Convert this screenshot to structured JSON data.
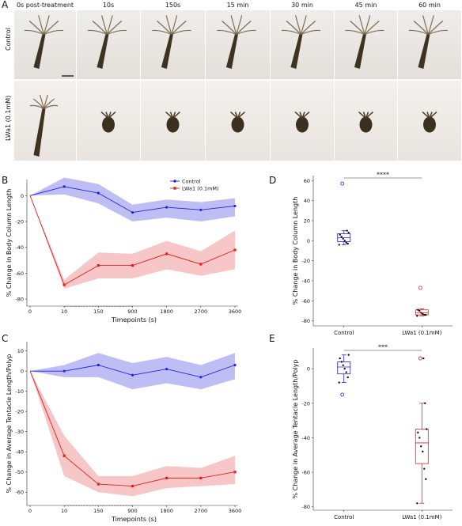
{
  "panel_a": {
    "letter": "A",
    "timepoints": [
      "0s post-treatment",
      "10s",
      "150s",
      "15 min",
      "30 min",
      "45 min",
      "60 min"
    ],
    "rows": [
      "Control",
      "LWa1 (0.1mM)"
    ]
  },
  "chart_data": [
    {
      "panel": "B",
      "type": "line",
      "title": "",
      "xlabel": "Timepoints (s)",
      "ylabel": "% Change in Body Column Length",
      "categories": [
        "0",
        "10",
        "150",
        "900",
        "1800",
        "2700",
        "3600"
      ],
      "ylim": [
        -83,
        10
      ],
      "yticks": [
        -80,
        -60,
        -40,
        -20,
        0
      ],
      "legend_position": "top-center",
      "series": [
        {
          "name": "Control",
          "color": "#2222dd",
          "band": "#b3b3f2",
          "values": [
            0,
            7,
            2,
            -13,
            -9,
            -11,
            -8
          ],
          "lower": [
            0,
            1,
            -6,
            -20,
            -17,
            -20,
            -16
          ],
          "upper": [
            0,
            14,
            9,
            -7,
            -3,
            -5,
            -2
          ]
        },
        {
          "name": "LWa1 (0.1mM)",
          "color": "#dd2222",
          "band": "#f6bcbc",
          "values": [
            0,
            -69,
            -54,
            -54,
            -45,
            -53,
            -42
          ],
          "lower": [
            0,
            -72,
            -64,
            -64,
            -57,
            -62,
            -57
          ],
          "upper": [
            0,
            -65,
            -44,
            -45,
            -35,
            -43,
            -27
          ]
        }
      ]
    },
    {
      "panel": "C",
      "type": "line",
      "title": "",
      "xlabel": "Timepoints (s)",
      "ylabel": "% Change in Average Tentacle Length/Polyp",
      "categories": [
        "0",
        "10",
        "150",
        "900",
        "1800",
        "2700",
        "3600"
      ],
      "ylim": [
        -65,
        13
      ],
      "yticks": [
        -60,
        -50,
        -40,
        -30,
        -20,
        -10,
        0,
        10
      ],
      "series": [
        {
          "name": "Control",
          "color": "#2222dd",
          "band": "#b3b3f2",
          "values": [
            0,
            0,
            3,
            -2,
            1,
            -3,
            3
          ],
          "lower": [
            0,
            -3,
            -3,
            -9,
            -6,
            -9,
            -4
          ],
          "upper": [
            0,
            3,
            9,
            4,
            7,
            3,
            9
          ]
        },
        {
          "name": "LWa1 (0.1mM)",
          "color": "#dd2222",
          "band": "#f6bcbc",
          "values": [
            0,
            -42,
            -56,
            -57,
            -53,
            -53,
            -50
          ],
          "lower": [
            0,
            -52,
            -60,
            -62,
            -58,
            -57,
            -56
          ],
          "upper": [
            0,
            -32,
            -52,
            -52,
            -47,
            -48,
            -42
          ]
        }
      ]
    },
    {
      "panel": "D",
      "type": "box",
      "title": "",
      "xlabel": "",
      "ylabel": "% Change in Body Column Length",
      "categories": [
        "Control",
        "LWa1 (0.1mM)"
      ],
      "ylim": [
        -85,
        65
      ],
      "yticks": [
        -80,
        -60,
        -40,
        -20,
        0,
        20,
        40,
        60
      ],
      "significance": "****",
      "groups": [
        {
          "name": "Control",
          "color": "#2222dd",
          "box": {
            "min": -4,
            "q1": -1,
            "median": 3,
            "q3": 7,
            "max": 10
          },
          "points": [
            -4,
            -3,
            -2,
            0,
            2,
            4,
            6,
            8,
            10
          ],
          "outliers": [
            57
          ]
        },
        {
          "name": "LWa1 (0.1mM)",
          "color": "#dd2222",
          "box": {
            "min": -75,
            "q1": -74,
            "median": -72,
            "q3": -69,
            "max": -68
          },
          "points": [
            -75,
            -74,
            -74,
            -73,
            -72,
            -70,
            -69
          ],
          "outliers": [
            -47
          ]
        }
      ]
    },
    {
      "panel": "E",
      "type": "box",
      "title": "",
      "xlabel": "",
      "ylabel": "% Change in Average Tentacle Length/Polyp",
      "categories": [
        "Control",
        "LWa1 (0.1mM)"
      ],
      "ylim": [
        -82,
        12
      ],
      "yticks": [
        -80,
        -60,
        -40,
        -20,
        0
      ],
      "significance": "***",
      "groups": [
        {
          "name": "Control",
          "color": "#2222dd",
          "box": {
            "min": -8,
            "q1": -3,
            "median": 1,
            "q3": 4,
            "max": 8
          },
          "points": [
            -8,
            -5,
            -2,
            0,
            2,
            4,
            6,
            8
          ],
          "outliers": [
            -15
          ]
        },
        {
          "name": "LWa1 (0.1mM)",
          "color": "#dd2222",
          "box": {
            "min": -78,
            "q1": -55,
            "median": -43,
            "q3": -35,
            "max": -20
          },
          "points": [
            -78,
            -64,
            -58,
            -48,
            -45,
            -40,
            -37,
            -35,
            -20,
            6
          ],
          "outliers": [
            6
          ]
        }
      ]
    }
  ]
}
